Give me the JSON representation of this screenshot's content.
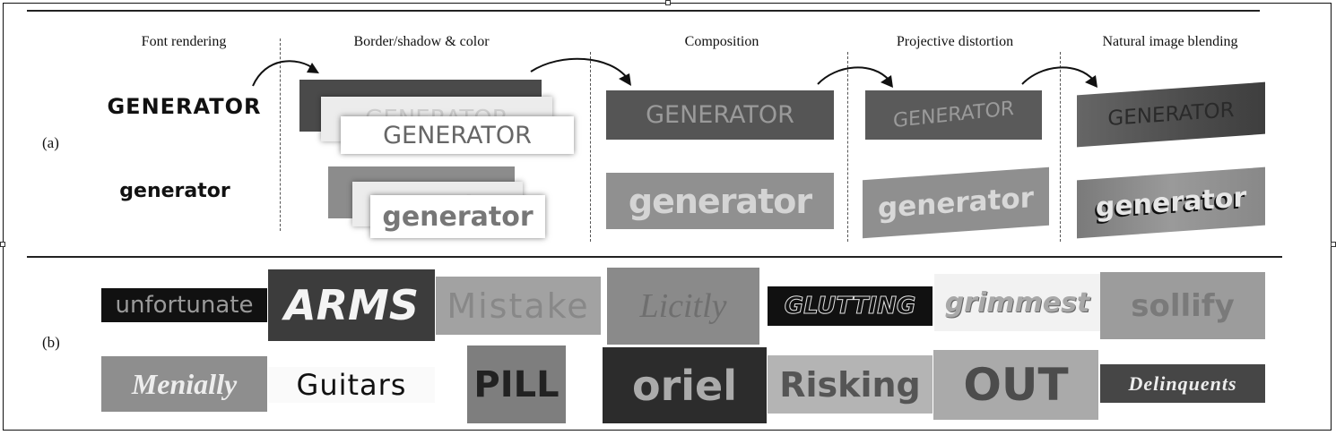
{
  "panel_a": {
    "label": "(a)",
    "stages": [
      "Font rendering",
      "Border/shadow & color",
      "Composition",
      "Projective distortion",
      "Natural image blending"
    ],
    "word_upper": "GENERATOR",
    "word_lower": "generator"
  },
  "panel_b": {
    "label": "(b)",
    "row1": [
      "unfortunate",
      "ARMS",
      "Mistake",
      "Licitly",
      "GLUTTING",
      "grimmest",
      "sollify"
    ],
    "row2": [
      "Menially",
      "Guitars",
      "PILL",
      "oriel",
      "Risking",
      "OUT",
      "Delinquents"
    ]
  }
}
